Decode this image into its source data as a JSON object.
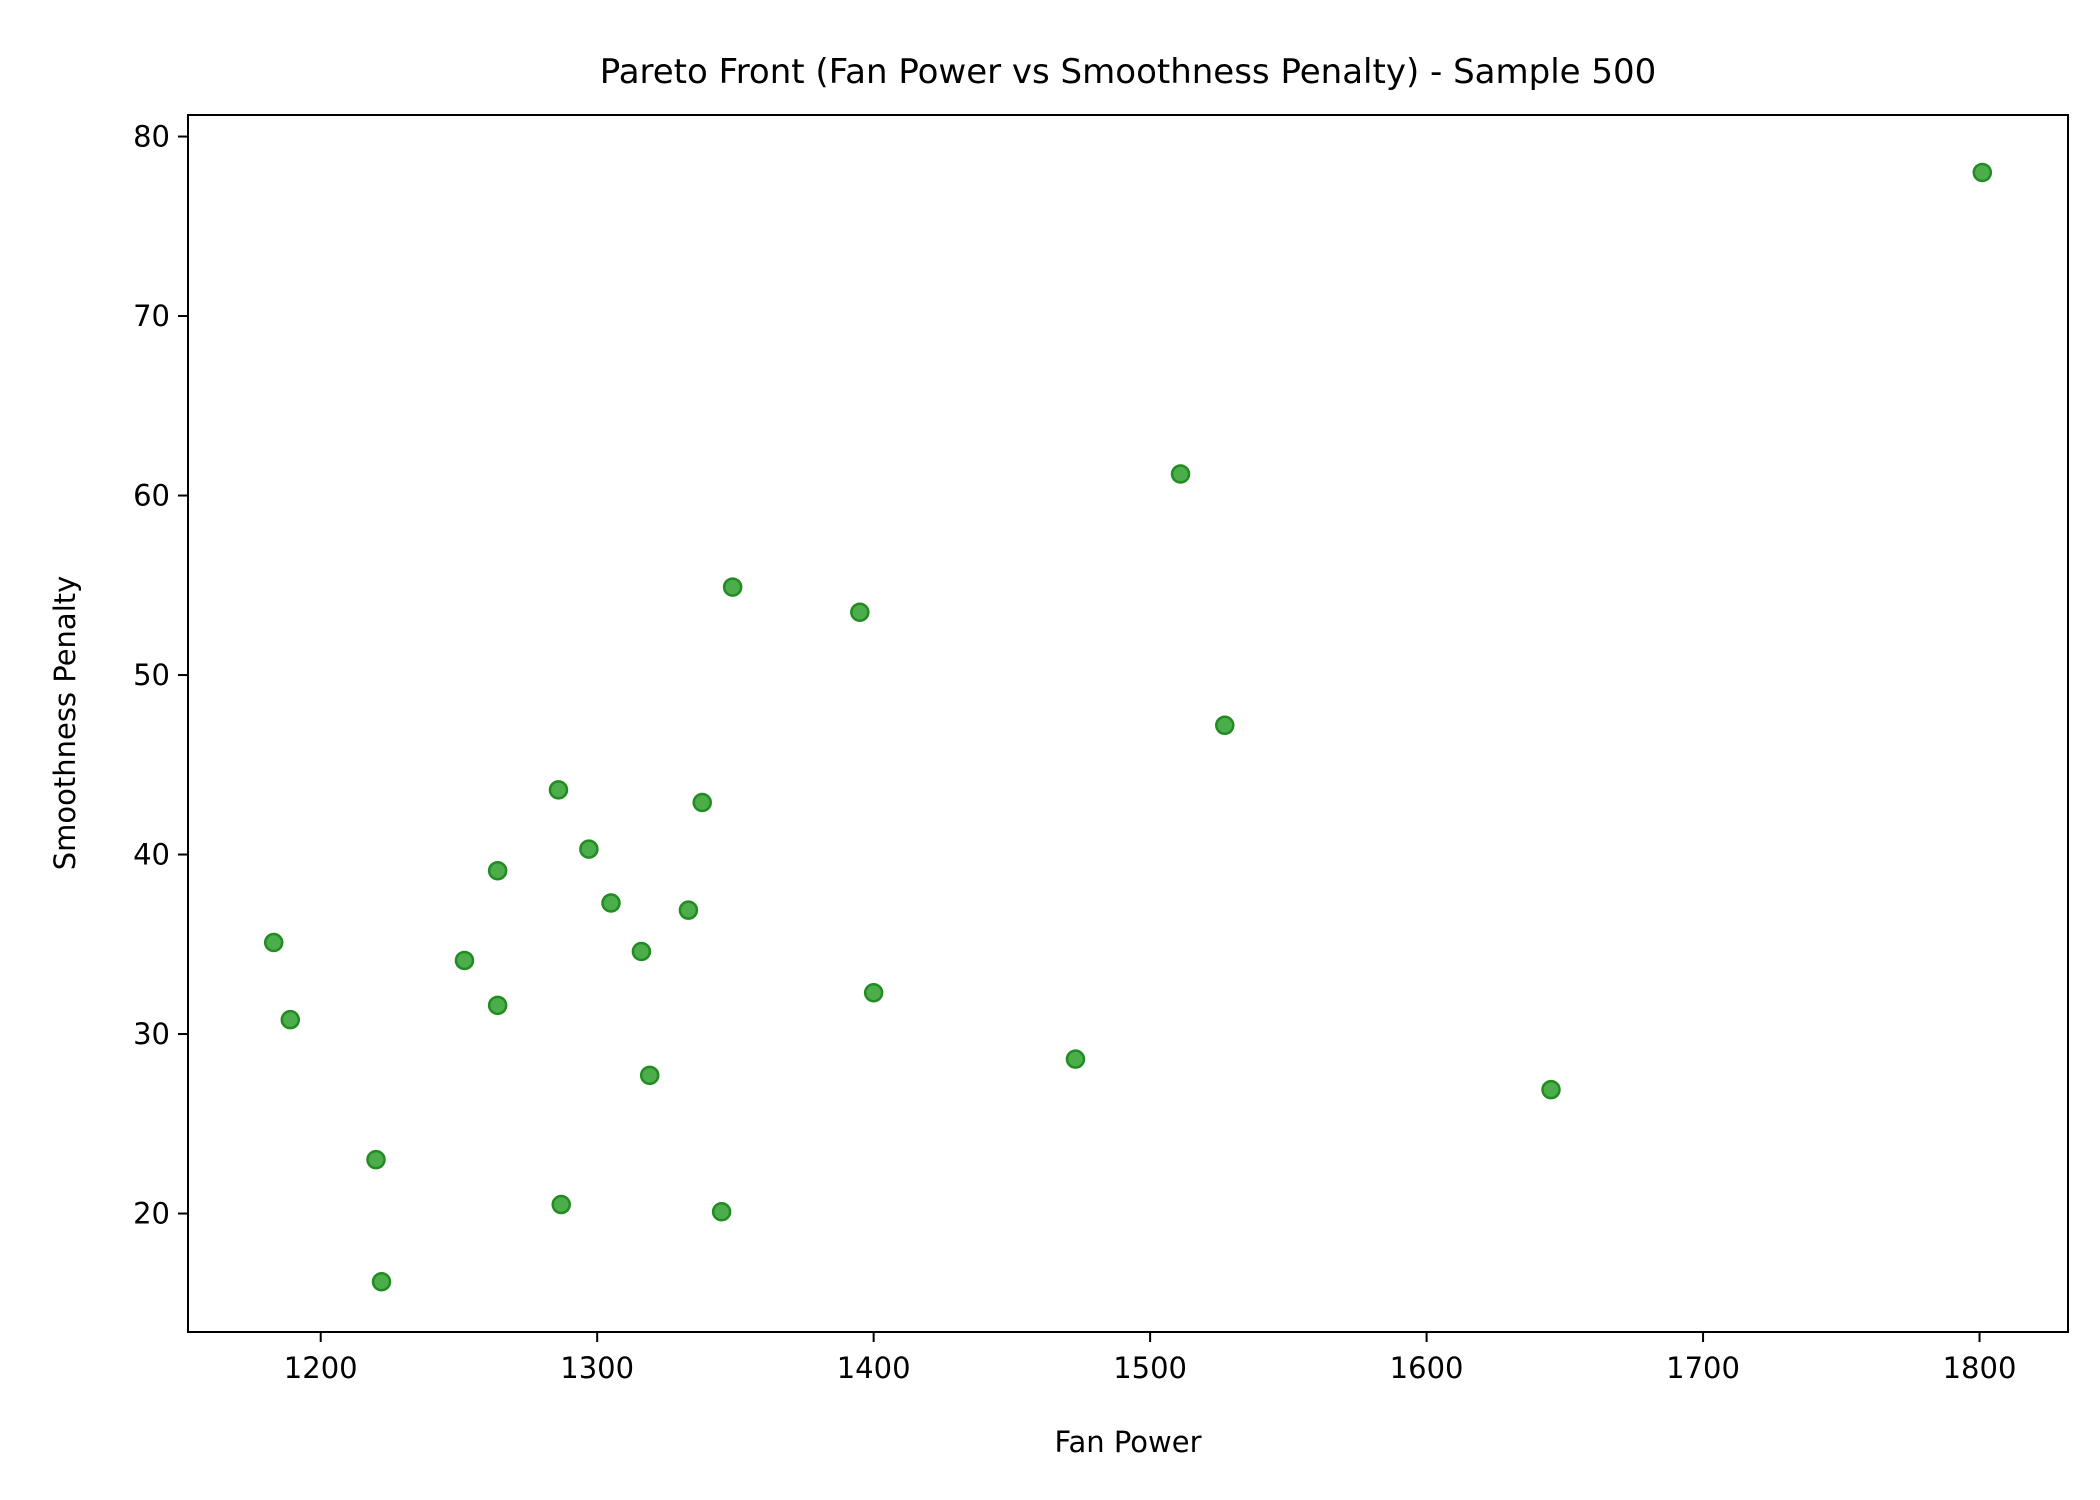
{
  "chart_data": {
    "type": "scatter",
    "title": "Pareto Front (Fan Power vs Smoothness Penalty) - Sample 500",
    "xlabel": "Fan Power",
    "ylabel": "Smoothness Penalty",
    "xlim": [
      1152,
      1832
    ],
    "ylim": [
      13.4,
      81.2
    ],
    "xticks": [
      1200,
      1300,
      1400,
      1500,
      1600,
      1700,
      1800
    ],
    "yticks": [
      20,
      30,
      40,
      50,
      60,
      70,
      80
    ],
    "grid": false,
    "legend": "none",
    "marker_color": "#2ca02c",
    "marker_edge_color": "#228b22",
    "series": [
      {
        "points": [
          {
            "x": 1801,
            "y": 78.0
          },
          {
            "x": 1511,
            "y": 61.2
          },
          {
            "x": 1349,
            "y": 54.9
          },
          {
            "x": 1395,
            "y": 53.5
          },
          {
            "x": 1527,
            "y": 47.2
          },
          {
            "x": 1286,
            "y": 43.6
          },
          {
            "x": 1338,
            "y": 42.9
          },
          {
            "x": 1297,
            "y": 40.3
          },
          {
            "x": 1264,
            "y": 39.1
          },
          {
            "x": 1305,
            "y": 37.3
          },
          {
            "x": 1333,
            "y": 36.9
          },
          {
            "x": 1183,
            "y": 35.1
          },
          {
            "x": 1316,
            "y": 34.6
          },
          {
            "x": 1252,
            "y": 34.1
          },
          {
            "x": 1400,
            "y": 32.3
          },
          {
            "x": 1264,
            "y": 31.6
          },
          {
            "x": 1189,
            "y": 30.8
          },
          {
            "x": 1473,
            "y": 28.6
          },
          {
            "x": 1319,
            "y": 27.7
          },
          {
            "x": 1645,
            "y": 26.9
          },
          {
            "x": 1220,
            "y": 23.0
          },
          {
            "x": 1287,
            "y": 20.5
          },
          {
            "x": 1345,
            "y": 20.1
          },
          {
            "x": 1222,
            "y": 16.2
          }
        ]
      }
    ]
  }
}
